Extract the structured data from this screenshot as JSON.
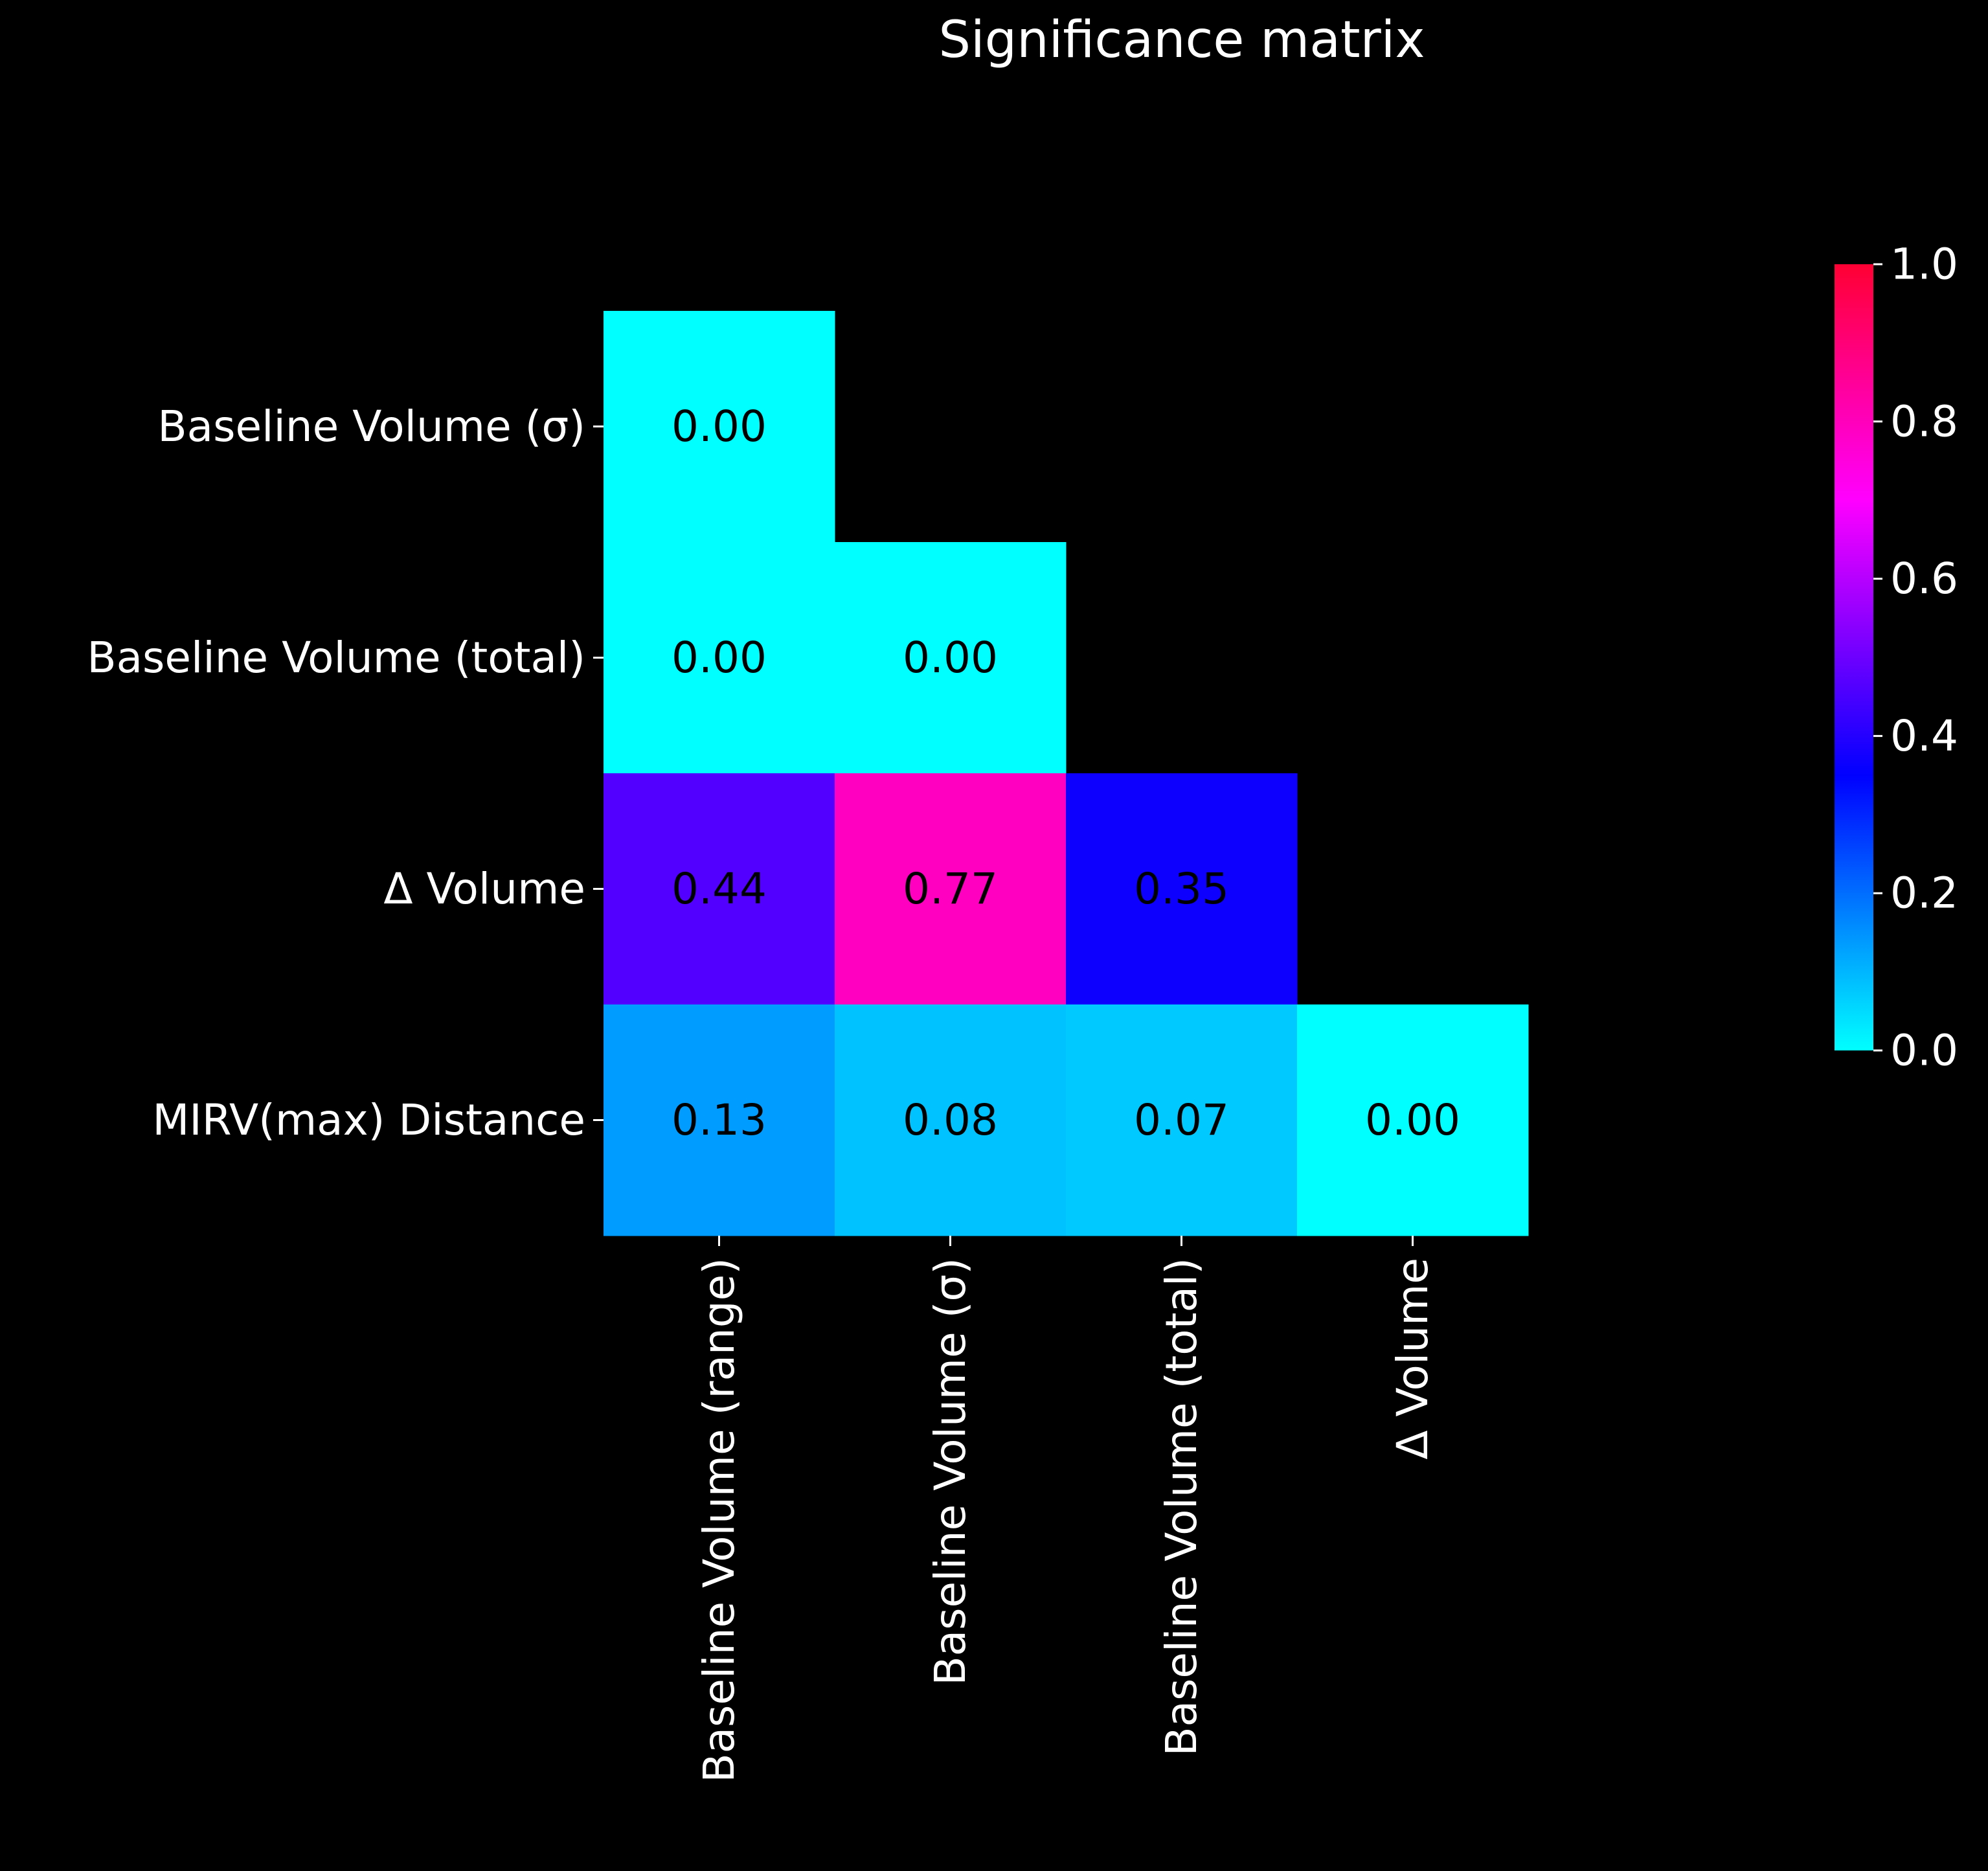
{
  "chart_data": {
    "type": "heatmap",
    "title": "Significance matrix",
    "xlabel": "",
    "ylabel": "",
    "x_categories": [
      "Baseline Volume (range)",
      "Baseline Volume (σ)",
      "Baseline Volume (total)",
      "Δ Volume"
    ],
    "y_categories": [
      "Baseline Volume (σ)",
      "Baseline Volume (total)",
      "Δ Volume",
      "MIRV(max) Distance"
    ],
    "cells": [
      [
        0.0,
        null,
        null,
        null
      ],
      [
        0.0,
        0.0,
        null,
        null
      ],
      [
        0.44,
        0.77,
        0.35,
        null
      ],
      [
        0.13,
        0.08,
        0.07,
        0.0
      ]
    ],
    "cell_labels": [
      [
        "0.00",
        "",
        "",
        ""
      ],
      [
        "0.00",
        "0.00",
        "",
        ""
      ],
      [
        "0.44",
        "0.77",
        "0.35",
        ""
      ],
      [
        "0.13",
        "0.08",
        "0.07",
        "0.00"
      ]
    ],
    "colorbar": {
      "min": 0.0,
      "max": 1.0,
      "ticks": [
        "0.0",
        "0.2",
        "0.4",
        "0.6",
        "0.8",
        "1.0"
      ],
      "tick_values": [
        0.0,
        0.2,
        0.4,
        0.6,
        0.8,
        1.0
      ]
    },
    "colormap_stops": [
      "#00ffff",
      "#0000ff",
      "#ff00ff",
      "#ff0033"
    ],
    "annotation_color": "#000000",
    "text_color": "#ffffff",
    "background": "#000000"
  }
}
